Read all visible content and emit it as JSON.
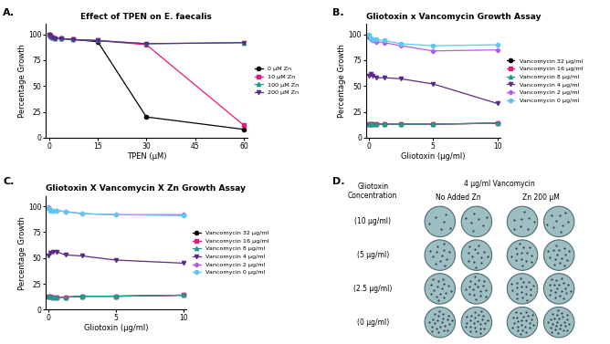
{
  "chart_data": [
    {
      "type": "line",
      "panel": "A.",
      "title": "Effect of TPEN on E. faecalis",
      "x_label": "TPEN (µM)",
      "y_label": "Percentage Growth",
      "x": [
        0,
        0.47,
        0.94,
        1.875,
        3.75,
        7.5,
        15,
        30,
        60
      ],
      "xlim": [
        -1,
        61
      ],
      "ylim": [
        0,
        110
      ],
      "xticks": [
        0,
        15,
        30,
        45,
        60
      ],
      "yticks": [
        0,
        25,
        50,
        75,
        100
      ],
      "legend": "center left",
      "series": [
        {
          "name": "0 µM Zn",
          "color": "#000000",
          "marker": "circle",
          "values": [
            100,
            98,
            97,
            96,
            96,
            95,
            93,
            20,
            8
          ]
        },
        {
          "name": "10 µM Zn",
          "color": "#e6197d",
          "marker": "square",
          "values": [
            100,
            99,
            97,
            96,
            96,
            95,
            94,
            90,
            12
          ]
        },
        {
          "name": "100 µM Zn",
          "color": "#1a9e8f",
          "marker": "triangle_up",
          "values": [
            100,
            99,
            97,
            96,
            96,
            95,
            94,
            91,
            92
          ]
        },
        {
          "name": "200 µM Zn",
          "color": "#5b2a86",
          "marker": "triangle_down",
          "values": [
            100,
            99,
            97,
            96,
            96,
            95,
            94,
            91,
            92
          ]
        }
      ]
    },
    {
      "type": "line",
      "panel": "B.",
      "title": "Gliotoxin x Vancomycin Growth Assay",
      "x_label": "Gliotoxin (µg/ml)",
      "y_label": "Percentage Growth",
      "x": [
        0,
        0.156,
        0.3125,
        0.625,
        1.25,
        2.5,
        5,
        10
      ],
      "xlim": [
        -0.2,
        10.2
      ],
      "ylim": [
        0,
        110
      ],
      "xticks": [
        0,
        5,
        10
      ],
      "yticks": [
        0,
        25,
        50,
        75,
        100
      ],
      "legend": "center left",
      "series": [
        {
          "name": "Vancomycin 32 µg/ml",
          "color": "#000000",
          "marker": "circle",
          "values": [
            13,
            13,
            13,
            13,
            13,
            13,
            13,
            14
          ]
        },
        {
          "name": "Vancomycin 16 µg/ml",
          "color": "#e6197d",
          "marker": "square",
          "values": [
            13,
            13,
            13,
            13,
            13,
            13,
            13,
            14
          ]
        },
        {
          "name": "Vancomycin 8 µg/ml",
          "color": "#1a9e8f",
          "marker": "triangle_up",
          "values": [
            13,
            13,
            13,
            13,
            13,
            13,
            13,
            14
          ]
        },
        {
          "name": "Vancomycin 4 µg/ml",
          "color": "#5b2a86",
          "marker": "triangle_down",
          "values": [
            60,
            62,
            60,
            58,
            58,
            57,
            52,
            33
          ]
        },
        {
          "name": "Vancomycin 2 µg/ml",
          "color": "#b45ce6",
          "marker": "plus",
          "values": [
            97,
            95,
            94,
            93,
            92,
            89,
            84,
            85
          ]
        },
        {
          "name": "Vancomycin 0 µg/ml",
          "color": "#5bc8f0",
          "marker": "circle",
          "values": [
            100,
            96,
            95,
            95,
            94,
            91,
            89,
            90
          ]
        }
      ]
    },
    {
      "type": "line",
      "panel": "C.",
      "title": "Gliotoxin X Vancomycin X Zn Growth Assay",
      "x_label": "Gliotoxin (µg/ml)",
      "y_label": "Percentage Growth",
      "x": [
        0,
        0.156,
        0.3125,
        0.625,
        1.25,
        2.5,
        5,
        10
      ],
      "xlim": [
        -0.2,
        10.2
      ],
      "ylim": [
        0,
        110
      ],
      "xticks": [
        0,
        5,
        10
      ],
      "yticks": [
        0,
        25,
        50,
        75,
        100
      ],
      "legend": "center left",
      "series": [
        {
          "name": "Vancomycin 32 µg/ml",
          "color": "#000000",
          "marker": "circle",
          "values": [
            13,
            13,
            12,
            12,
            12,
            13,
            13,
            14
          ]
        },
        {
          "name": "Vancomycin 16 µg/ml",
          "color": "#e6197d",
          "marker": "square",
          "values": [
            13,
            13,
            12,
            12,
            12,
            13,
            13,
            14
          ]
        },
        {
          "name": "Vancomycin 8 µg/ml",
          "color": "#1a9e8f",
          "marker": "triangle_up",
          "values": [
            13,
            13,
            12,
            12,
            12,
            13,
            13,
            14
          ]
        },
        {
          "name": "Vancomycin 4 µg/ml",
          "color": "#5b2a86",
          "marker": "triangle_down",
          "values": [
            52,
            55,
            56,
            56,
            53,
            52,
            48,
            45
          ]
        },
        {
          "name": "Vancomycin 2 µg/ml",
          "color": "#b45ce6",
          "marker": "plus",
          "values": [
            99,
            97,
            96,
            96,
            95,
            93,
            92,
            92
          ]
        },
        {
          "name": "Vancomycin 0 µg/ml",
          "color": "#5bc8f0",
          "marker": "circle",
          "values": [
            98,
            96,
            96,
            96,
            95,
            93,
            92,
            91
          ]
        }
      ]
    }
  ],
  "plate_panel": {
    "panel": "D.",
    "row_header": "Gliotoxin\nConcentration",
    "column_header": "4 µg/ml Vancomycin",
    "groups": [
      "No Added Zn",
      "Zn 200 µM"
    ],
    "rows": [
      "(10 µg/ml)",
      "(5 µg/ml)",
      "(2.5 µg/ml)",
      "(0 µg/ml)"
    ]
  }
}
